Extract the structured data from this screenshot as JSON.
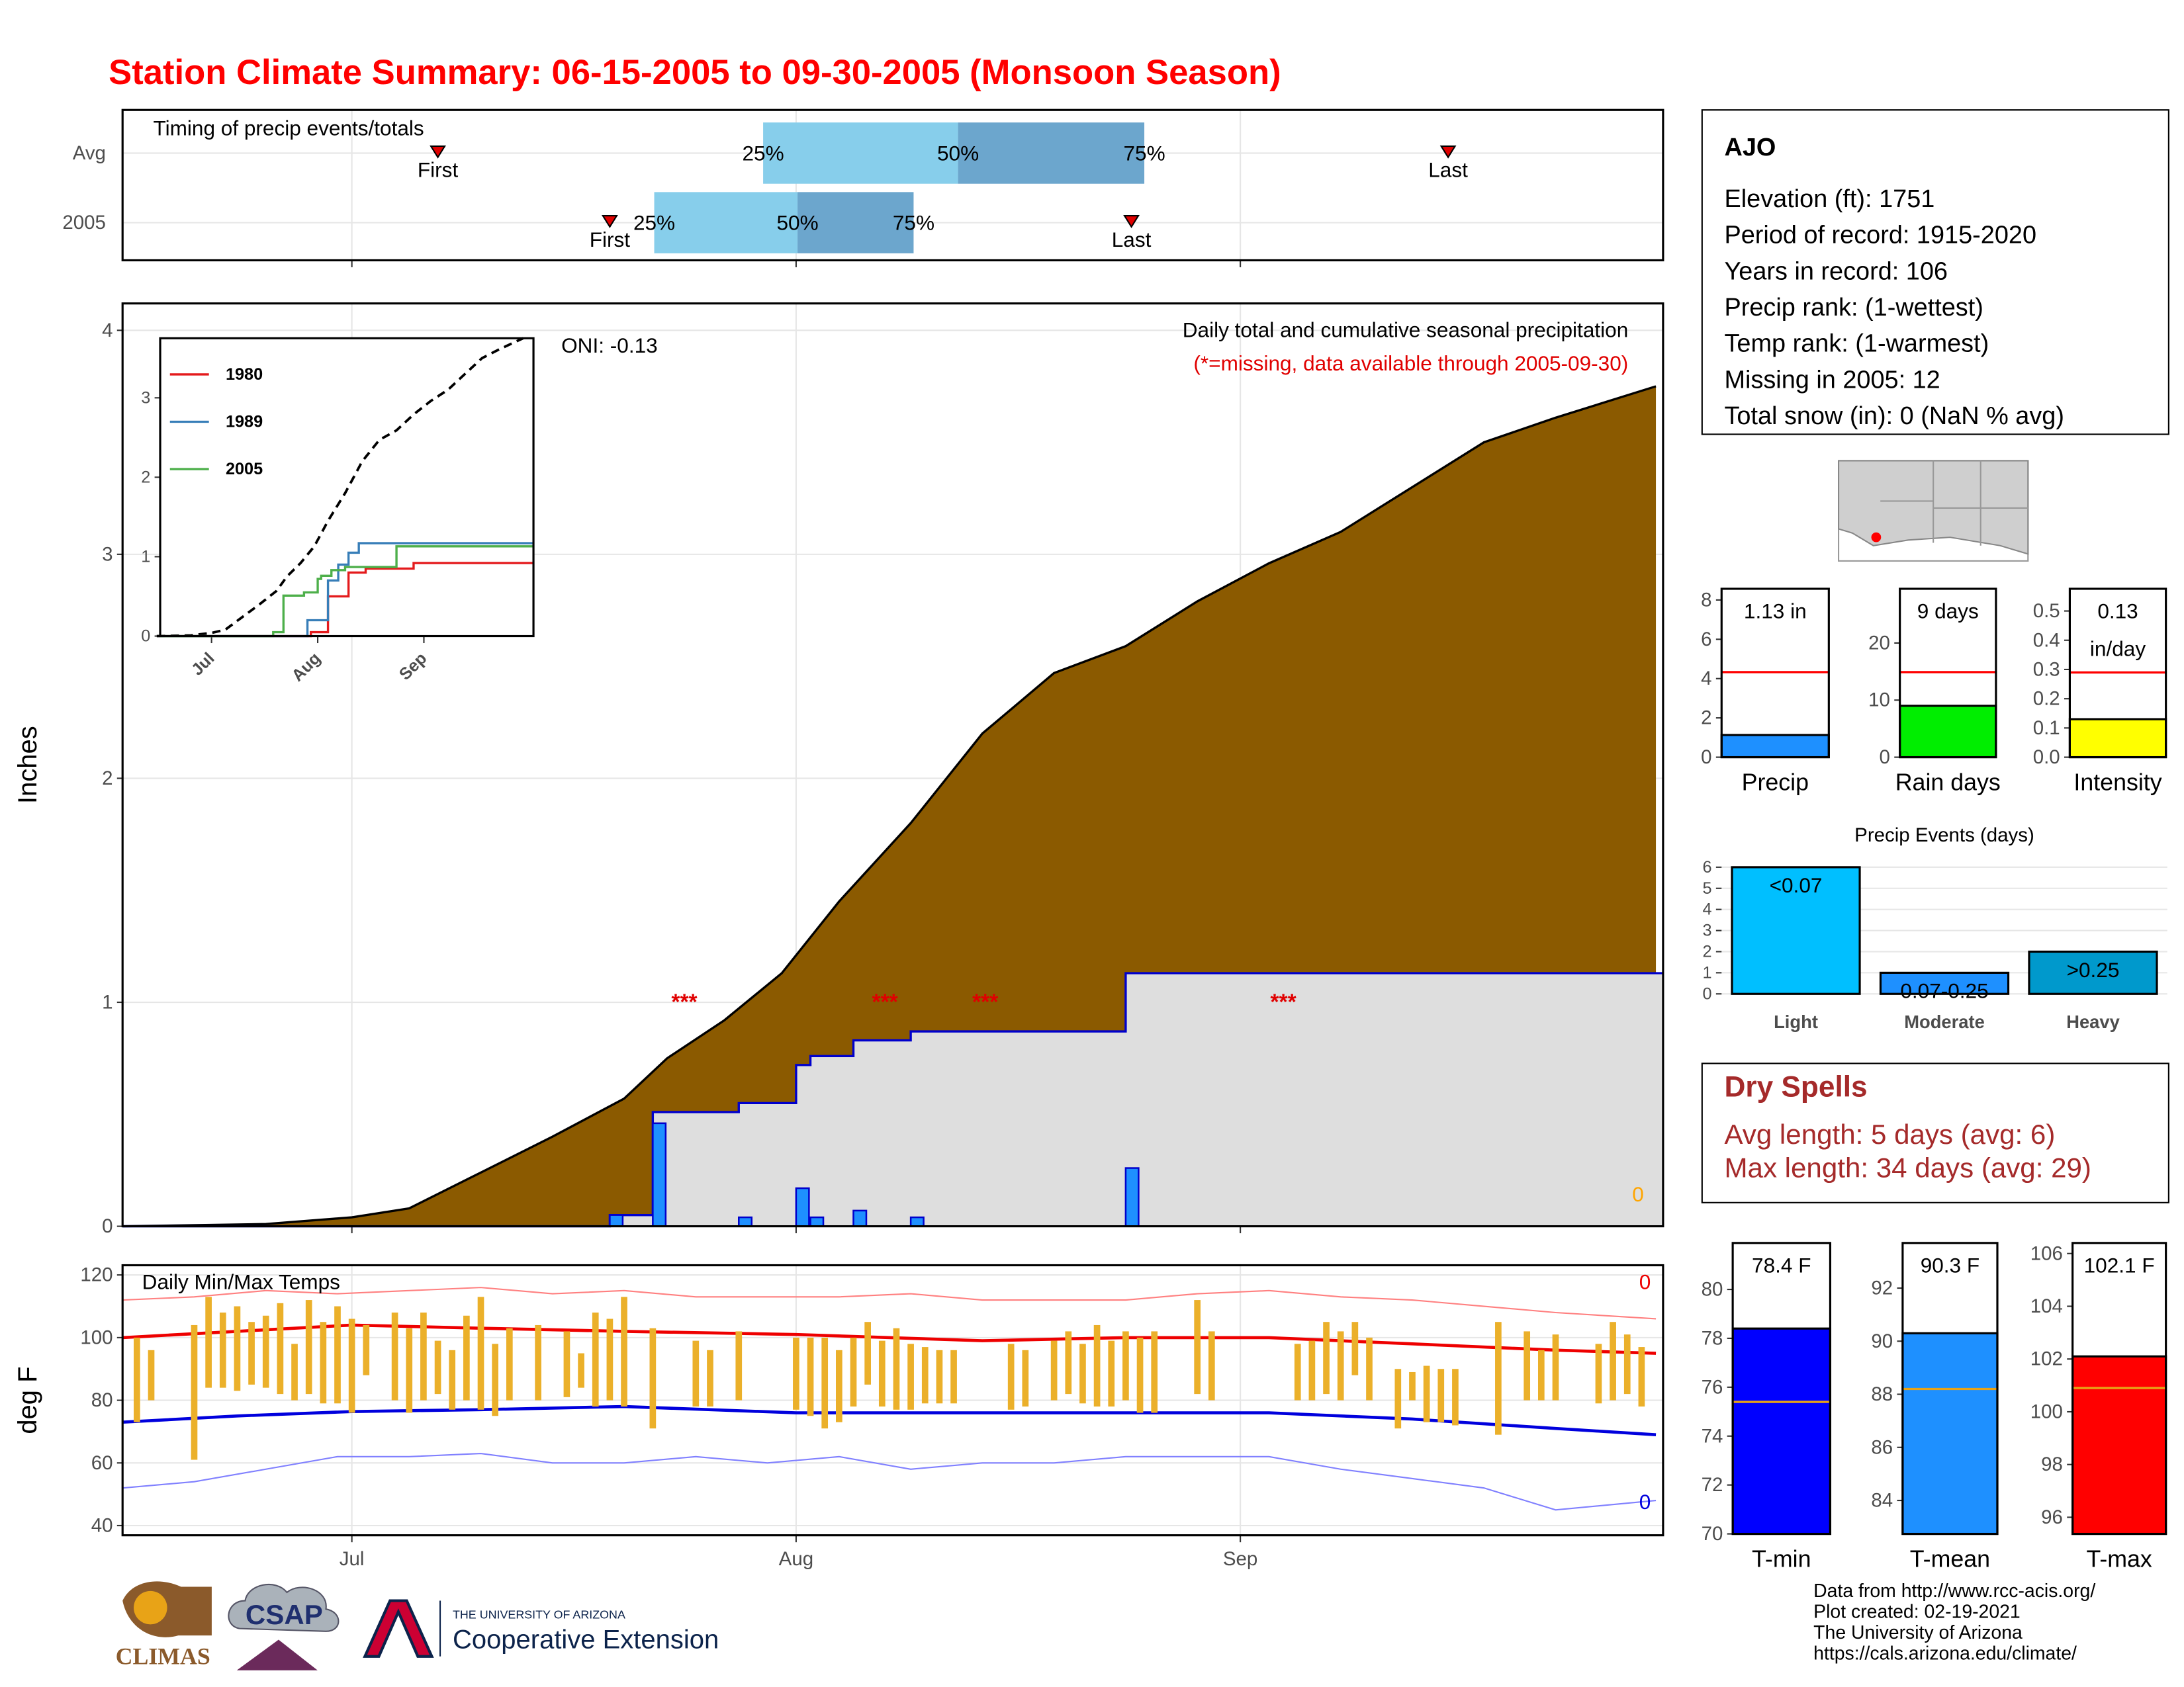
{
  "header": {
    "title": "Station Climate Summary: 06-15-2005 to 09-30-2005 (Monsoon Season)"
  },
  "station": {
    "name": "AJO",
    "lines": [
      "Elevation (ft): 1751",
      "Period of record: 1915-2020",
      "Years in record: 106",
      "Precip rank:  (1-wettest)",
      "Temp rank:  (1-warmest)",
      "Missing in 2005: 12",
      "Total snow (in): 0 (NaN % avg)"
    ]
  },
  "dry_spells": {
    "title": "Dry Spells",
    "lines": [
      "Avg length: 5 days (avg: 6)",
      "Max length: 34 days (avg: 29)"
    ]
  },
  "footer": {
    "credits": [
      "Data from http://www.rcc-acis.org/",
      "Plot created: 02-19-2021",
      "The University of Arizona",
      "https://cals.arizona.edu/climate/"
    ],
    "logos": [
      "CLIMAS",
      "CSAP",
      "THE UNIVERSITY OF ARIZONA",
      "Cooperative Extension"
    ]
  },
  "chart_data": [
    {
      "type": "timing",
      "title": "Timing of precip events/totals",
      "categories": [
        "Avg",
        "2005"
      ],
      "xlim": [
        0,
        107.5
      ],
      "xticks": [
        16,
        47,
        78
      ],
      "grid": true,
      "rows": [
        {
          "first": 22,
          "q25": 44.7,
          "q50": 58.3,
          "q75": 71.3,
          "last": 92.5
        },
        {
          "first": 34,
          "q25": 37.1,
          "q50": 47.1,
          "q75": 55.2,
          "last": 70.4
        }
      ],
      "labels": {
        "first": "First",
        "last": "Last",
        "q25": "25%",
        "q50": "50%",
        "q75": "75%"
      },
      "colors": [
        "#87CEEB",
        "#6CA6CD"
      ],
      "marker_color": "#E00000"
    },
    {
      "type": "cumulative",
      "subtitle": "Daily total and cumulative seasonal precipitation",
      "note": "(*=missing, data available through 2005-09-30)",
      "oni": "ONI: -0.13",
      "ylabel": "Inches",
      "corner_label": "0",
      "xlim": [
        0,
        107.5
      ],
      "xticks": [
        16,
        47,
        78
      ],
      "ylim": [
        0,
        4.12
      ],
      "yticks": [
        0,
        1,
        2,
        3,
        4
      ],
      "grid": true,
      "avg_cumulative": {
        "color": "#8B5A00",
        "x": [
          0,
          10,
          16,
          20,
          25,
          30,
          35,
          38,
          42,
          46,
          50,
          55,
          60,
          65,
          70,
          75,
          80,
          85,
          90,
          95,
          100,
          107
        ],
        "values": [
          0,
          0.01,
          0.04,
          0.08,
          0.24,
          0.4,
          0.57,
          0.75,
          0.92,
          1.13,
          1.45,
          1.8,
          2.2,
          2.47,
          2.59,
          2.79,
          2.96,
          3.1,
          3.3,
          3.5,
          3.61,
          3.75
        ]
      },
      "daily_2005": {
        "color": "#1E90FF",
        "line_color": "#0000CC",
        "area_color": "#DEDEDE",
        "x": [
          34,
          37,
          43,
          47,
          48,
          51,
          55,
          70
        ],
        "values": [
          0.05,
          0.46,
          0.04,
          0.17,
          0.04,
          0.07,
          0.04,
          0.26
        ]
      },
      "missing": {
        "label": "***",
        "x": [
          39.2,
          53.2,
          60.2,
          81
        ],
        "y": 1,
        "color": "#E00000"
      }
    },
    {
      "type": "line",
      "xlim": [
        1,
        110
      ],
      "xticks": [
        {
          "value": 16,
          "label": "Jul"
        },
        {
          "value": 47,
          "label": "Aug"
        },
        {
          "value": 78,
          "label": "Sep"
        }
      ],
      "ylim": [
        0,
        3.75
      ],
      "yticks": [
        0,
        1,
        2,
        3
      ],
      "series": [
        {
          "color": "#000000",
          "dash": true,
          "x": [
            0,
            10,
            16,
            20,
            25,
            30,
            35,
            38,
            42,
            46,
            50,
            55,
            60,
            65,
            70,
            75,
            80,
            85,
            90,
            95,
            100,
            107
          ],
          "values": [
            0,
            0.01,
            0.04,
            0.08,
            0.24,
            0.4,
            0.57,
            0.75,
            0.92,
            1.13,
            1.45,
            1.8,
            2.2,
            2.47,
            2.59,
            2.79,
            2.96,
            3.1,
            3.3,
            3.5,
            3.61,
            3.75
          ]
        },
        {
          "name": "1980",
          "color": "#E41A1C",
          "x": [
            1,
            45,
            50,
            56,
            61,
            75
          ],
          "values": [
            0,
            0.05,
            0.5,
            0.8,
            0.85,
            0.92
          ]
        },
        {
          "name": "1989",
          "color": "#377EB8",
          "x": [
            1,
            44,
            50,
            53,
            56,
            59
          ],
          "values": [
            0,
            0.2,
            0.7,
            0.9,
            1.05,
            1.17
          ]
        },
        {
          "name": "2005",
          "color": "#4DAF4A",
          "x": [
            1,
            34,
            37,
            43,
            47,
            48,
            51,
            55,
            70
          ],
          "values": [
            0,
            0.05,
            0.51,
            0.55,
            0.72,
            0.76,
            0.83,
            0.87,
            1.13
          ]
        }
      ]
    },
    {
      "type": "temps",
      "title": "Daily Min/Max Temps",
      "ylabel": "deg F",
      "high_note": "0",
      "low_note": "0",
      "xlim": [
        0,
        107.5
      ],
      "xticks": [
        {
          "value": 16,
          "label": "Jul"
        },
        {
          "value": 47,
          "label": "Aug"
        },
        {
          "value": 78,
          "label": "Sep"
        }
      ],
      "ylim": [
        36.9,
        123.1
      ],
      "yticks": [
        40,
        60,
        80,
        100,
        120
      ],
      "grid": true,
      "series": [
        {
          "color": "#FF8080",
          "x": [
            0,
            5,
            10,
            15,
            20,
            25,
            30,
            35,
            40,
            45,
            50,
            55,
            60,
            65,
            70,
            75,
            80,
            85,
            90,
            95,
            100,
            107
          ],
          "values": [
            112,
            113,
            115,
            114,
            115,
            116,
            114,
            115,
            113,
            113,
            113,
            114,
            112,
            112,
            112,
            114,
            115,
            113,
            112,
            110,
            108,
            106
          ]
        },
        {
          "color": "#EE0000",
          "x": [
            0,
            8,
            16,
            25,
            35,
            47,
            60,
            70,
            80,
            90,
            100,
            107
          ],
          "values": [
            100,
            102,
            104,
            103,
            102,
            101,
            99,
            100,
            100,
            98,
            96,
            95
          ]
        },
        {
          "color": "#0000DD",
          "x": [
            0,
            8,
            16,
            25,
            35,
            47,
            60,
            70,
            80,
            90,
            100,
            107
          ],
          "values": [
            73,
            75,
            76.4,
            77,
            78,
            76,
            76,
            76,
            76,
            74,
            71,
            69
          ]
        },
        {
          "color": "#8080FF",
          "x": [
            0,
            5,
            10,
            15,
            20,
            25,
            30,
            35,
            40,
            45,
            50,
            55,
            60,
            65,
            70,
            75,
            80,
            85,
            90,
            95,
            100,
            107
          ],
          "values": [
            52,
            54,
            58,
            62,
            62,
            63,
            60,
            60,
            62,
            60,
            62,
            58,
            60,
            60,
            62,
            62,
            62,
            58,
            55,
            52,
            45,
            48
          ]
        }
      ],
      "bars": {
        "color": "#EBB02A",
        "x": [
          1,
          2,
          5,
          6,
          7,
          8,
          9,
          10,
          11,
          12,
          13,
          14,
          15,
          16,
          17,
          19,
          20,
          21,
          22,
          23,
          24,
          25,
          26,
          27,
          29,
          31,
          32,
          33,
          34,
          35,
          37,
          40,
          41,
          43,
          47,
          48,
          49,
          50,
          51,
          52,
          53,
          54,
          55,
          56,
          57,
          58,
          62,
          63,
          65,
          66,
          67,
          68,
          69,
          70,
          71,
          72,
          75,
          76,
          82,
          83,
          84,
          85,
          86,
          87,
          89,
          90,
          91,
          92,
          93,
          96,
          98,
          99,
          100,
          103,
          104,
          105,
          106
        ],
        "low": [
          73,
          80,
          61,
          84,
          84,
          83,
          85,
          84,
          82,
          80,
          82,
          79,
          79,
          76,
          88,
          80,
          76,
          80,
          82,
          77,
          80,
          77,
          75,
          80,
          80,
          81,
          84,
          78,
          80,
          78,
          71,
          78,
          78,
          80,
          77,
          75,
          71,
          73,
          78,
          85,
          78,
          77,
          77,
          79,
          79,
          79,
          77,
          78,
          80,
          82,
          79,
          78,
          78,
          80,
          76,
          76,
          82,
          80,
          80,
          80,
          82,
          80,
          88,
          80,
          71,
          80,
          73,
          73,
          72,
          69,
          80,
          80,
          80,
          79,
          80,
          82,
          78
        ],
        "high": [
          100,
          96,
          104,
          113,
          108,
          110,
          105,
          107,
          111,
          98,
          112,
          105,
          110,
          106,
          104,
          108,
          103,
          108,
          99,
          96,
          107,
          113,
          98,
          103,
          104,
          102,
          95,
          108,
          106,
          113,
          103,
          99,
          96,
          102,
          100,
          100,
          100,
          96,
          100,
          105,
          99,
          103,
          98,
          97,
          96,
          96,
          98,
          96,
          99,
          102,
          98,
          104,
          99,
          102,
          100,
          102,
          112,
          102,
          98,
          99,
          105,
          102,
          105,
          100,
          90,
          89,
          91,
          90,
          90,
          105,
          102,
          96,
          101,
          98,
          105,
          101,
          97
        ]
      }
    },
    {
      "type": "bar",
      "categories": [
        "Precip"
      ],
      "values": [
        1.13
      ],
      "value_labels": [
        "1.13 in"
      ],
      "avg": 4.33,
      "avg_color": "#FF0000",
      "color": "#1E90FF",
      "ylim": [
        0,
        8.57
      ],
      "yticks": [
        0,
        2,
        4,
        6,
        8
      ]
    },
    {
      "type": "bar",
      "categories": [
        "Rain days"
      ],
      "values": [
        9
      ],
      "value_labels": [
        "9 days"
      ],
      "avg": 14.9,
      "avg_color": "#FF0000",
      "color": "#00EE00",
      "ylim": [
        0,
        29.5
      ],
      "yticks": [
        0,
        10,
        20
      ]
    },
    {
      "type": "bar",
      "categories": [
        "Intensity"
      ],
      "values": [
        0.13
      ],
      "value_labels": [
        "0.13"
      ],
      "unit": "in/day",
      "avg": 0.29,
      "avg_color": "#FF0000",
      "color": "#FFFF00",
      "ylim": [
        0,
        0.576
      ],
      "yticks": [
        {
          "value": 0,
          "label": "0.0"
        },
        {
          "value": 0.1,
          "label": "0.1"
        },
        {
          "value": 0.2,
          "label": "0.2"
        },
        {
          "value": 0.3,
          "label": "0.3"
        },
        {
          "value": 0.4,
          "label": "0.4"
        },
        {
          "value": 0.5,
          "label": "0.5"
        }
      ]
    },
    {
      "type": "bar",
      "title": "Precip Events (days)",
      "categories": [
        "Light",
        "Moderate",
        "Heavy"
      ],
      "values": [
        6,
        1,
        2
      ],
      "bin_labels": [
        "<0.07",
        "0.07-0.25",
        ">0.25"
      ],
      "colors": [
        "#00BFFF",
        "#1E90FF",
        "#0099CC"
      ],
      "ylim": [
        -0.13,
        6.53
      ],
      "yticks": [
        0,
        1,
        2,
        3,
        4,
        5,
        6
      ],
      "grid": true
    },
    {
      "type": "bar",
      "categories": [
        "T-min"
      ],
      "values": [
        78.4
      ],
      "value_labels": [
        "78.4 F"
      ],
      "avg": 75.4,
      "avg_color": "#E8A317",
      "color": "#0000FF",
      "ylim": [
        70,
        81.9
      ],
      "yticks": [
        70,
        72,
        74,
        76,
        78,
        80
      ]
    },
    {
      "type": "bar",
      "categories": [
        "T-mean"
      ],
      "values": [
        90.3
      ],
      "value_labels": [
        "90.3 F"
      ],
      "avg": 88.2,
      "avg_color": "#E8A317",
      "color": "#1E90FF",
      "ylim": [
        82.74,
        93.7
      ],
      "yticks": [
        84,
        86,
        88,
        90,
        92
      ]
    },
    {
      "type": "bar",
      "categories": [
        "T-max"
      ],
      "values": [
        102.1
      ],
      "value_labels": [
        "102.1 F"
      ],
      "avg": 100.9,
      "avg_color": "#E8A317",
      "color": "#FF0000",
      "ylim": [
        95.37,
        106.4
      ],
      "yticks": [
        96,
        98,
        100,
        102,
        104,
        106
      ]
    }
  ]
}
